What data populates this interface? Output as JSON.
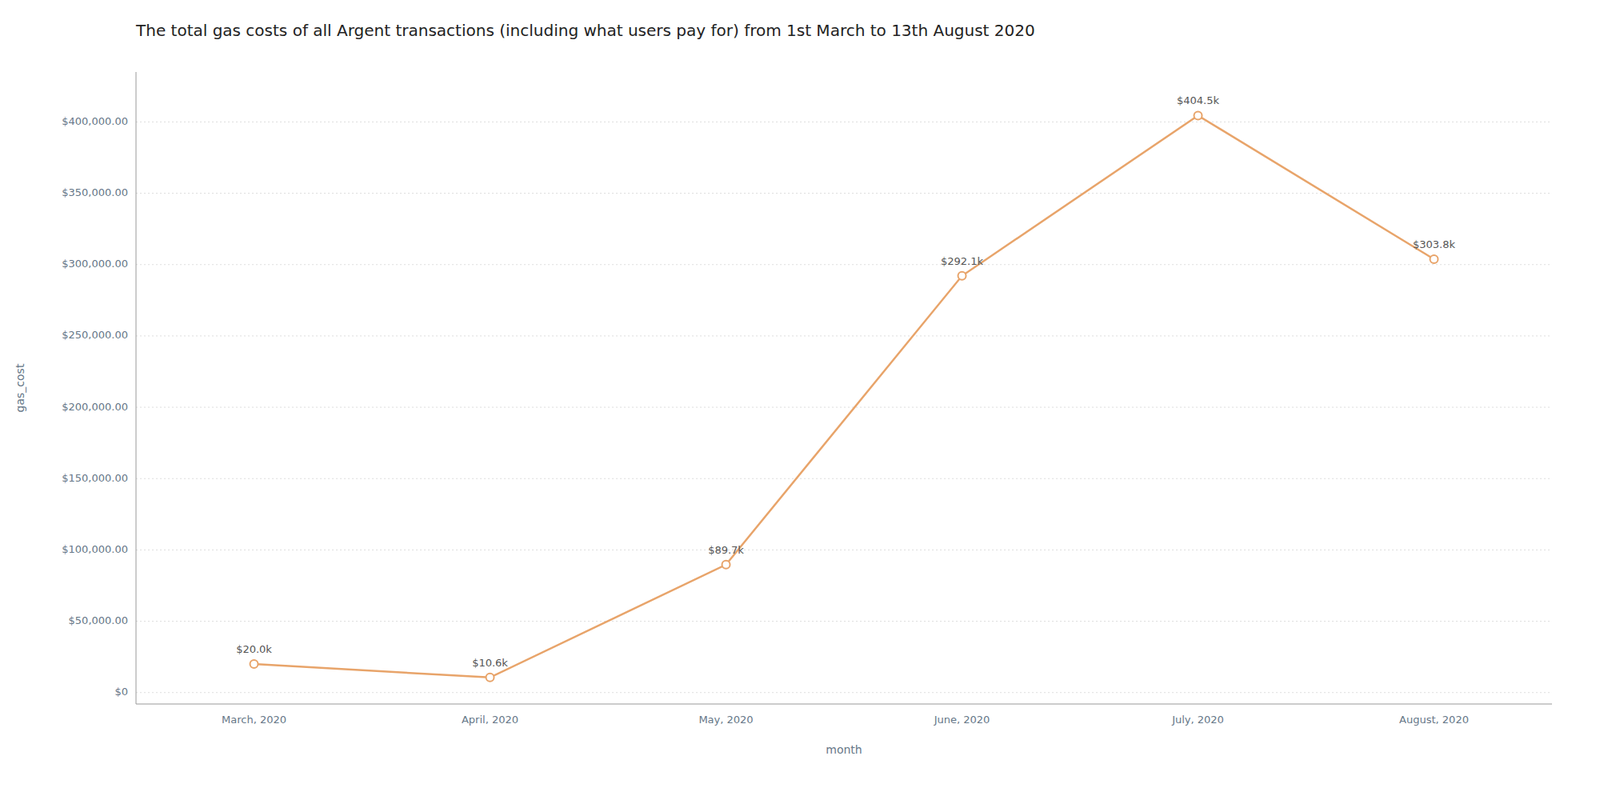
{
  "chart_data": {
    "type": "line",
    "title": "The total gas costs of all Argent transactions (including what users pay for) from 1st March to 13th August 2020",
    "xlabel": "month",
    "ylabel": "gas_cost",
    "categories": [
      "March, 2020",
      "April, 2020",
      "May, 2020",
      "June, 2020",
      "July, 2020",
      "August, 2020"
    ],
    "values": [
      20000,
      10600,
      89700,
      292100,
      404500,
      303800
    ],
    "value_labels": [
      "$20.0k",
      "$10.6k",
      "$89.7k",
      "$292.1k",
      "$404.5k",
      "$303.8k"
    ],
    "data_labels": true,
    "color": "#E8A46A",
    "marker": "circle",
    "ylim": [
      -8000,
      435000
    ],
    "yticks": [
      {
        "value": 0,
        "label": "$0"
      },
      {
        "value": 50000,
        "label": "$50,000.00"
      },
      {
        "value": 100000,
        "label": "$100,000.00"
      },
      {
        "value": 150000,
        "label": "$150,000.00"
      },
      {
        "value": 200000,
        "label": "$200,000.00"
      },
      {
        "value": 250000,
        "label": "$250,000.00"
      },
      {
        "value": 300000,
        "label": "$300,000.00"
      },
      {
        "value": 350000,
        "label": "$350,000.00"
      },
      {
        "value": 400000,
        "label": "$400,000.00"
      }
    ],
    "grid": true
  }
}
